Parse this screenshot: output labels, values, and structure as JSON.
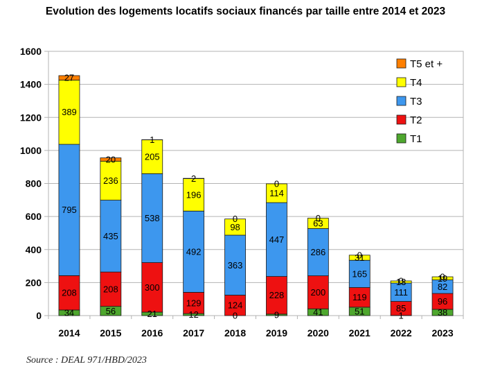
{
  "chart_data": {
    "type": "bar",
    "stacked": true,
    "title": "Evolution des logements locatifs sociaux financés par taille entre 2014 et 2023",
    "categories": [
      "2014",
      "2015",
      "2016",
      "2017",
      "2018",
      "2019",
      "2020",
      "2021",
      "2022",
      "2023"
    ],
    "series": [
      {
        "name": "T1",
        "color": "#4ea72e",
        "values": [
          34,
          56,
          21,
          12,
          0,
          9,
          41,
          51,
          1,
          38
        ]
      },
      {
        "name": "T2",
        "color": "#ee1111",
        "values": [
          208,
          208,
          300,
          129,
          124,
          228,
          200,
          119,
          85,
          96
        ]
      },
      {
        "name": "T3",
        "color": "#3d97ee",
        "values": [
          795,
          435,
          538,
          492,
          363,
          447,
          286,
          165,
          111,
          82
        ]
      },
      {
        "name": "T4",
        "color": "#ffff00",
        "values": [
          389,
          236,
          205,
          196,
          98,
          114,
          63,
          31,
          13,
          19
        ]
      },
      {
        "name": "T5 et +",
        "color": "#ff7f00",
        "values": [
          27,
          20,
          1,
          2,
          0,
          0,
          0,
          0,
          0,
          0
        ]
      }
    ],
    "ylim": [
      0,
      1600
    ],
    "yticks": [
      0,
      200,
      400,
      600,
      800,
      1000,
      1200,
      1400,
      1600
    ],
    "grid": true,
    "legend": "top-right",
    "legend_order": [
      "T5 et +",
      "T4",
      "T3",
      "T2",
      "T1"
    ]
  },
  "source": "Source : DEAL 971/HBD/2023"
}
